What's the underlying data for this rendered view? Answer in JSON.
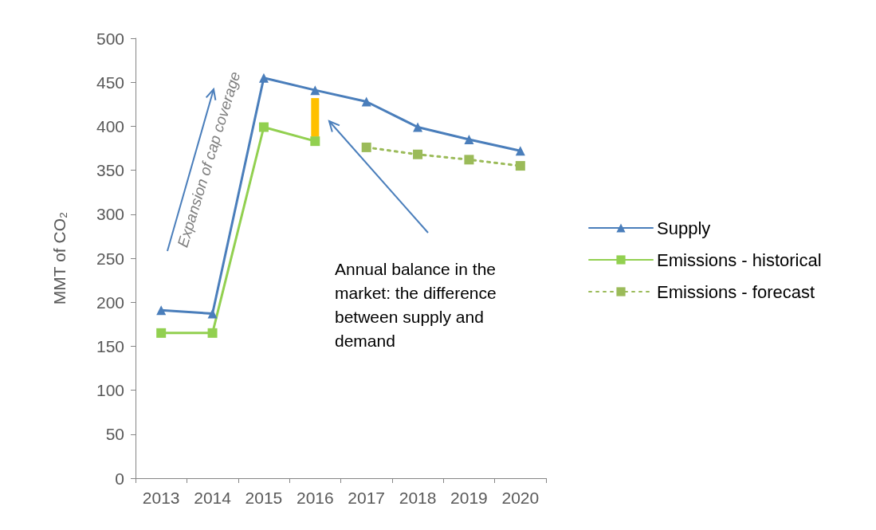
{
  "chart_data": {
    "type": "line",
    "ylabel": "MMT of CO₂",
    "categories": [
      "2013",
      "2014",
      "2015",
      "2016",
      "2017",
      "2018",
      "2019",
      "2020"
    ],
    "series": [
      {
        "name": "Supply",
        "color": "#4a7ebb",
        "marker": "triangle",
        "line_style": "solid",
        "values": [
          191,
          187,
          455,
          441,
          428,
          399,
          385,
          372
        ]
      },
      {
        "name": "Emissions - historical",
        "color": "#92d050",
        "marker": "square",
        "line_style": "solid",
        "values": [
          165,
          165,
          399,
          383,
          null,
          null,
          null,
          null
        ]
      },
      {
        "name": "Emissions - forecast",
        "color": "#9bbb59",
        "marker": "square",
        "line_style": "dotted",
        "values": [
          null,
          null,
          null,
          null,
          376,
          368,
          362,
          355
        ]
      },
      {
        "type": "bar",
        "color": "#ffc000",
        "base": [
          null,
          null,
          null,
          388,
          null,
          null,
          null,
          null
        ],
        "values": [
          null,
          null,
          null,
          44,
          null,
          null,
          null,
          null
        ]
      }
    ],
    "ylim": [
      0,
      500
    ],
    "yticks": [
      0,
      50,
      100,
      150,
      200,
      250,
      300,
      350,
      400,
      450,
      500
    ],
    "grid": false,
    "legend": "right",
    "annotations": [
      "Expansion of cap coverage",
      "Annual balance in the market: the difference between supply and demand"
    ]
  }
}
